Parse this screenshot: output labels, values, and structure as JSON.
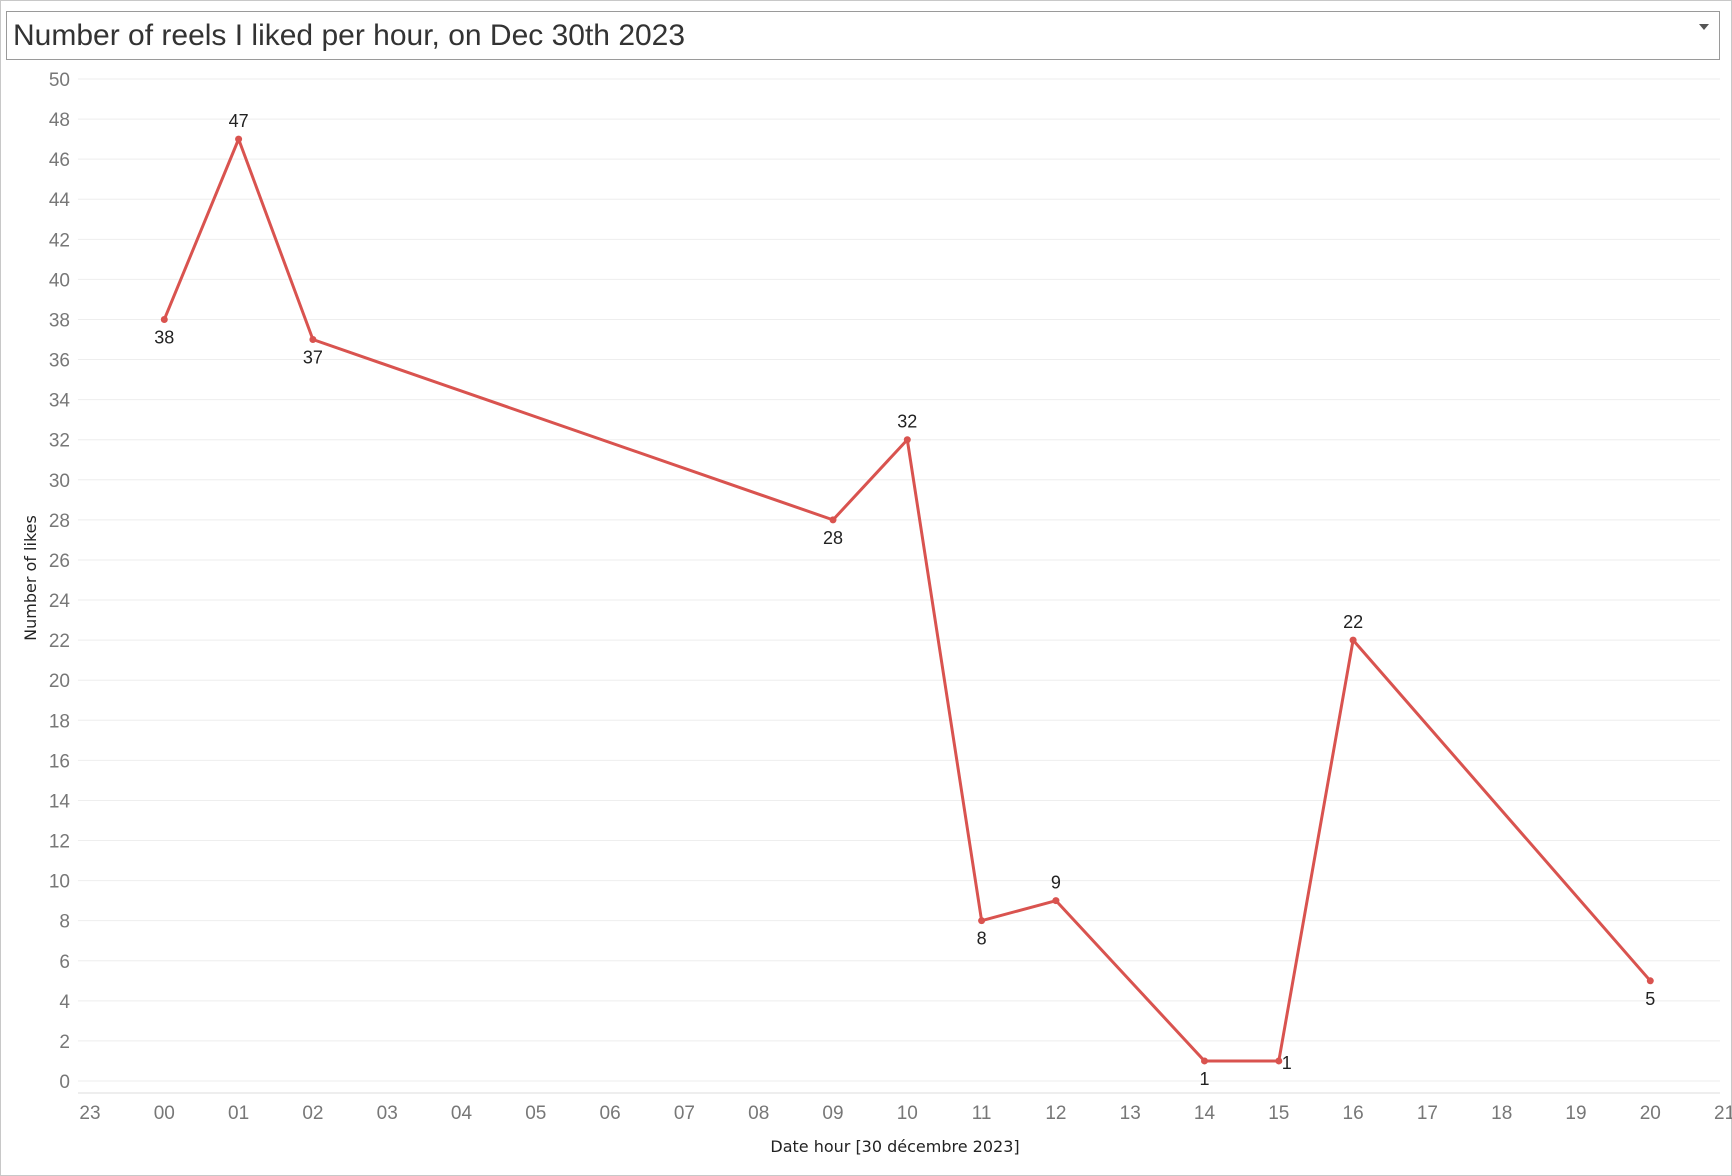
{
  "title_bar": {
    "title": "Number of reels I liked per hour, on Dec 30th 2023",
    "dropdown_icon": "chevron-down-icon"
  },
  "colors": {
    "line": "#d9534f",
    "grid": "#eeeeee",
    "tick_text": "#777777",
    "label_text": "#222222"
  },
  "chart_data": {
    "type": "line",
    "title": "Number of reels I liked per hour, on Dec 30th 2023",
    "xlabel": "Date hour [30 décembre 2023]",
    "ylabel": "Number of likes",
    "x_ticks": [
      "23",
      "00",
      "01",
      "02",
      "03",
      "04",
      "05",
      "06",
      "07",
      "08",
      "09",
      "10",
      "11",
      "12",
      "13",
      "14",
      "15",
      "16",
      "17",
      "18",
      "19",
      "20",
      "21"
    ],
    "y_ticks": [
      0,
      2,
      4,
      6,
      8,
      10,
      12,
      14,
      16,
      18,
      20,
      22,
      24,
      26,
      28,
      30,
      32,
      34,
      36,
      38,
      40,
      42,
      44,
      46,
      48,
      50
    ],
    "ylim": [
      0,
      50
    ],
    "grid": true,
    "series": [
      {
        "x": [
          "00",
          "01",
          "02",
          "09",
          "10",
          "11",
          "12",
          "14",
          "15",
          "16",
          "20"
        ],
        "values": [
          38,
          47,
          37,
          28,
          32,
          8,
          9,
          1,
          1,
          22,
          5
        ]
      }
    ]
  }
}
